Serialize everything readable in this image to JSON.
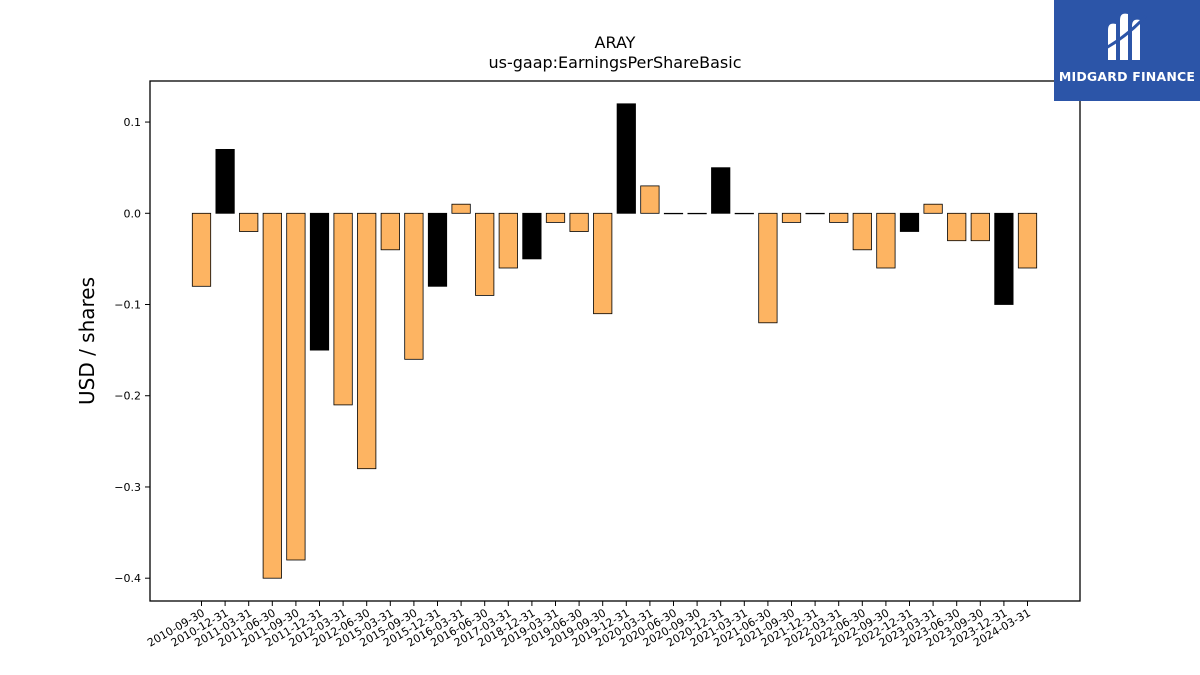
{
  "chart_data": {
    "type": "bar",
    "title": "ARAY",
    "subtitle": "us-gaap:EarningsPerShareBasic",
    "xlabel": "",
    "ylabel": "USD / shares",
    "ylim": [
      -0.425,
      0.145
    ],
    "yticks": [
      0.1,
      0.0,
      -0.1,
      -0.2,
      -0.3,
      -0.4
    ],
    "ytick_labels": [
      "0.1",
      "0.0",
      "−0.1",
      "−0.2",
      "−0.3",
      "−0.4"
    ],
    "grid": false,
    "categories": [
      "2010-09-30",
      "2010-12-31",
      "2011-03-31",
      "2011-06-30",
      "2011-09-30",
      "2011-12-31",
      "2012-03-31",
      "2012-06-30",
      "2015-03-31",
      "2015-09-30",
      "2015-12-31",
      "2016-03-31",
      "2016-06-30",
      "2017-03-31",
      "2018-12-31",
      "2019-03-31",
      "2019-06-30",
      "2019-09-30",
      "2019-12-31",
      "2020-03-31",
      "2020-06-30",
      "2020-09-30",
      "2020-12-31",
      "2021-03-31",
      "2021-06-30",
      "2021-09-30",
      "2021-12-31",
      "2022-03-31",
      "2022-06-30",
      "2022-09-30",
      "2022-12-31",
      "2023-03-31",
      "2023-06-30",
      "2023-09-30",
      "2023-12-31",
      "2024-03-31"
    ],
    "values": [
      -0.08,
      0.07,
      -0.02,
      -0.4,
      -0.38,
      -0.15,
      -0.21,
      -0.28,
      -0.04,
      -0.16,
      -0.08,
      0.01,
      -0.09,
      -0.06,
      -0.05,
      -0.01,
      -0.02,
      -0.11,
      0.12,
      0.03,
      0.0,
      0.0,
      0.05,
      0.0,
      -0.12,
      -0.01,
      0.0,
      -0.01,
      -0.04,
      -0.06,
      -0.02,
      0.01,
      -0.03,
      -0.03,
      -0.1,
      -0.06
    ],
    "highlight_quarters": [
      "2010-12-31",
      "2011-12-31",
      "2015-12-31",
      "2018-12-31",
      "2019-12-31",
      "2020-12-31",
      "2021-12-31",
      "2022-12-31",
      "2023-12-31"
    ],
    "colors": {
      "default": "#fdb462",
      "highlight": "#000000",
      "edge": "#000000"
    }
  },
  "logo": {
    "text": "MIDGARD FINANCE",
    "background": "#2c55a8"
  }
}
